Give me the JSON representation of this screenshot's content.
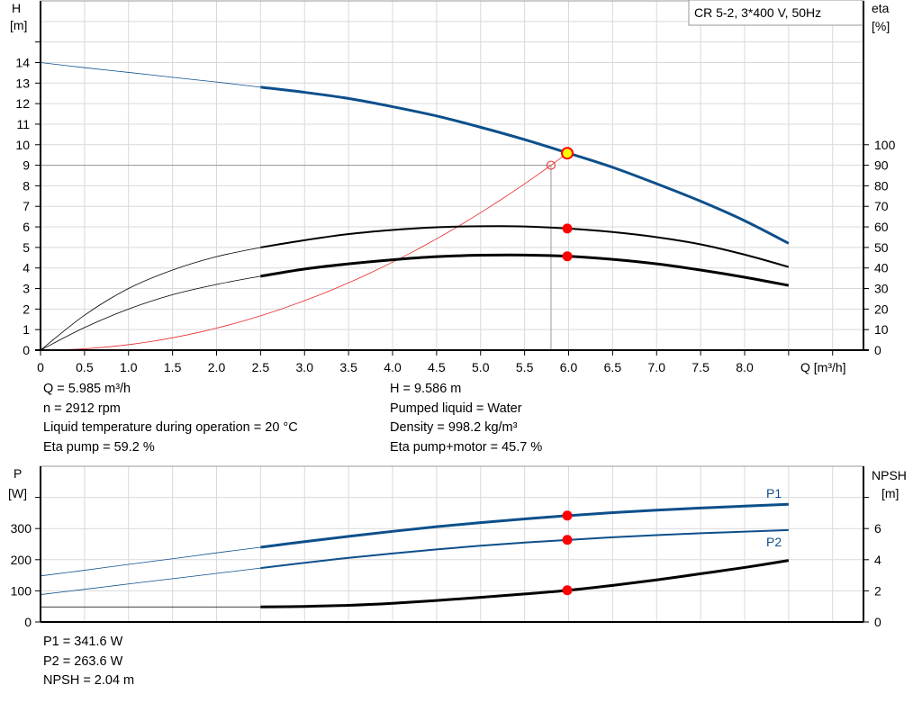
{
  "colors": {
    "pump": "#0d4f8b",
    "eta": "#000000",
    "system": "#e8282b",
    "duty": "#ff0000",
    "duty_fill": "#ffff00",
    "grid": "#d9d9d9",
    "ref": "#999999"
  },
  "legend_box": "CR 5-2, 3*400 V, 50Hz",
  "chart_data": [
    {
      "type": "line",
      "xlabel": "Q [m³/h]",
      "ylabel_left": [
        "H",
        "[m]"
      ],
      "ylabel_right": [
        "eta",
        "[%]"
      ],
      "xlim": [
        0,
        9.35
      ],
      "ylim_left": [
        0,
        17
      ],
      "ylim_right": [
        0,
        170
      ],
      "x_ticks": [
        "0",
        "0.5",
        "1.0",
        "1.5",
        "2.0",
        "2.5",
        "3.0",
        "3.5",
        "4.0",
        "4.5",
        "5.0",
        "5.5",
        "6.0",
        "6.5",
        "7.0",
        "7.5",
        "8.0"
      ],
      "y_ticks_left": [
        "0",
        "1",
        "2",
        "3",
        "4",
        "5",
        "6",
        "7",
        "8",
        "9",
        "10",
        "11",
        "12",
        "13",
        "14"
      ],
      "y_ticks_right": [
        "0",
        "10",
        "20",
        "30",
        "40",
        "50",
        "60",
        "70",
        "80",
        "90",
        "100"
      ],
      "grid": true,
      "q": [
        0,
        0.5,
        1,
        1.5,
        2,
        2.5,
        3,
        3.5,
        4,
        4.5,
        5,
        5.5,
        6,
        6.5,
        7,
        7.5,
        8,
        8.5
      ],
      "series": [
        {
          "key": "H",
          "axis": "left",
          "values": [
            14,
            13.75,
            13.52,
            13.28,
            13.05,
            12.8,
            12.55,
            12.25,
            11.85,
            11.4,
            10.85,
            10.25,
            9.586,
            8.9,
            8.1,
            7.25,
            6.3,
            5.2
          ]
        },
        {
          "key": "eta_pump",
          "axis": "right",
          "values": [
            0,
            17,
            30,
            39,
            45.5,
            50,
            53.5,
            56.5,
            58.5,
            59.8,
            60.3,
            60.2,
            59.2,
            57.5,
            55,
            51.5,
            46.5,
            40.5
          ]
        },
        {
          "key": "eta_pump_motor",
          "axis": "right",
          "values": [
            0,
            11,
            20,
            27,
            32,
            36,
            39.5,
            42,
            44,
            45.5,
            46.2,
            46.3,
            45.7,
            44.2,
            42,
            39,
            35.5,
            31.5
          ]
        }
      ],
      "system_curve": {
        "q_end": 5.985,
        "h_end": 9.586
      },
      "required_point": {
        "q": 5.8,
        "h": 9
      },
      "duty_point": {
        "q": 5.985,
        "h": 9.586,
        "eta_pump": 59.2,
        "eta_pump_motor": 45.7
      }
    },
    {
      "type": "line",
      "ylabel_left": [
        "P",
        "[W]"
      ],
      "ylabel_right": [
        "NPSH",
        "[m]"
      ],
      "xlim": [
        0,
        9.35
      ],
      "ylim_left": [
        0,
        500
      ],
      "ylim_right": [
        0,
        10
      ],
      "y_ticks_left": [
        "0",
        "100",
        "200",
        "300"
      ],
      "y_ticks_right": [
        "0",
        "2",
        "4",
        "6"
      ],
      "grid": true,
      "q": [
        0,
        0.5,
        1,
        1.5,
        2,
        2.5,
        3,
        3.5,
        4,
        4.5,
        5,
        5.5,
        6,
        6.5,
        7,
        7.5,
        8,
        8.5
      ],
      "series": [
        {
          "name": "P1",
          "axis": "left",
          "values": [
            148,
            166,
            185,
            203,
            222,
            240,
            258,
            275,
            291,
            306,
            319,
            331,
            341.6,
            351,
            359,
            366,
            372,
            378
          ]
        },
        {
          "name": "P2",
          "axis": "left",
          "values": [
            88,
            105,
            122,
            139,
            156,
            173,
            190,
            206,
            220,
            233,
            245,
            255,
            263.6,
            272,
            279,
            285,
            290,
            295
          ]
        },
        {
          "key": "NPSH",
          "axis": "right",
          "values": [
            0.97,
            0.97,
            0.97,
            0.97,
            0.97,
            0.97,
            1.0,
            1.07,
            1.2,
            1.38,
            1.58,
            1.8,
            2.04,
            2.35,
            2.7,
            3.1,
            3.5,
            3.95
          ]
        }
      ],
      "duty_point": {
        "q": 5.985,
        "P1": 341.6,
        "P2": 263.6,
        "NPSH": 2.04
      }
    }
  ],
  "info_top_left": [
    "Q = 5.985 m³/h",
    "n = 2912 rpm",
    "Liquid temperature during operation = 20 °C",
    "Eta pump = 59.2 %"
  ],
  "info_top_right": [
    "H = 9.586 m",
    "Pumped liquid = Water",
    "Density = 998.2 kg/m³",
    "Eta pump+motor = 45.7 %"
  ],
  "info_bottom": [
    "P1 = 341.6 W",
    "P2 = 263.6 W",
    "NPSH = 2.04 m"
  ]
}
